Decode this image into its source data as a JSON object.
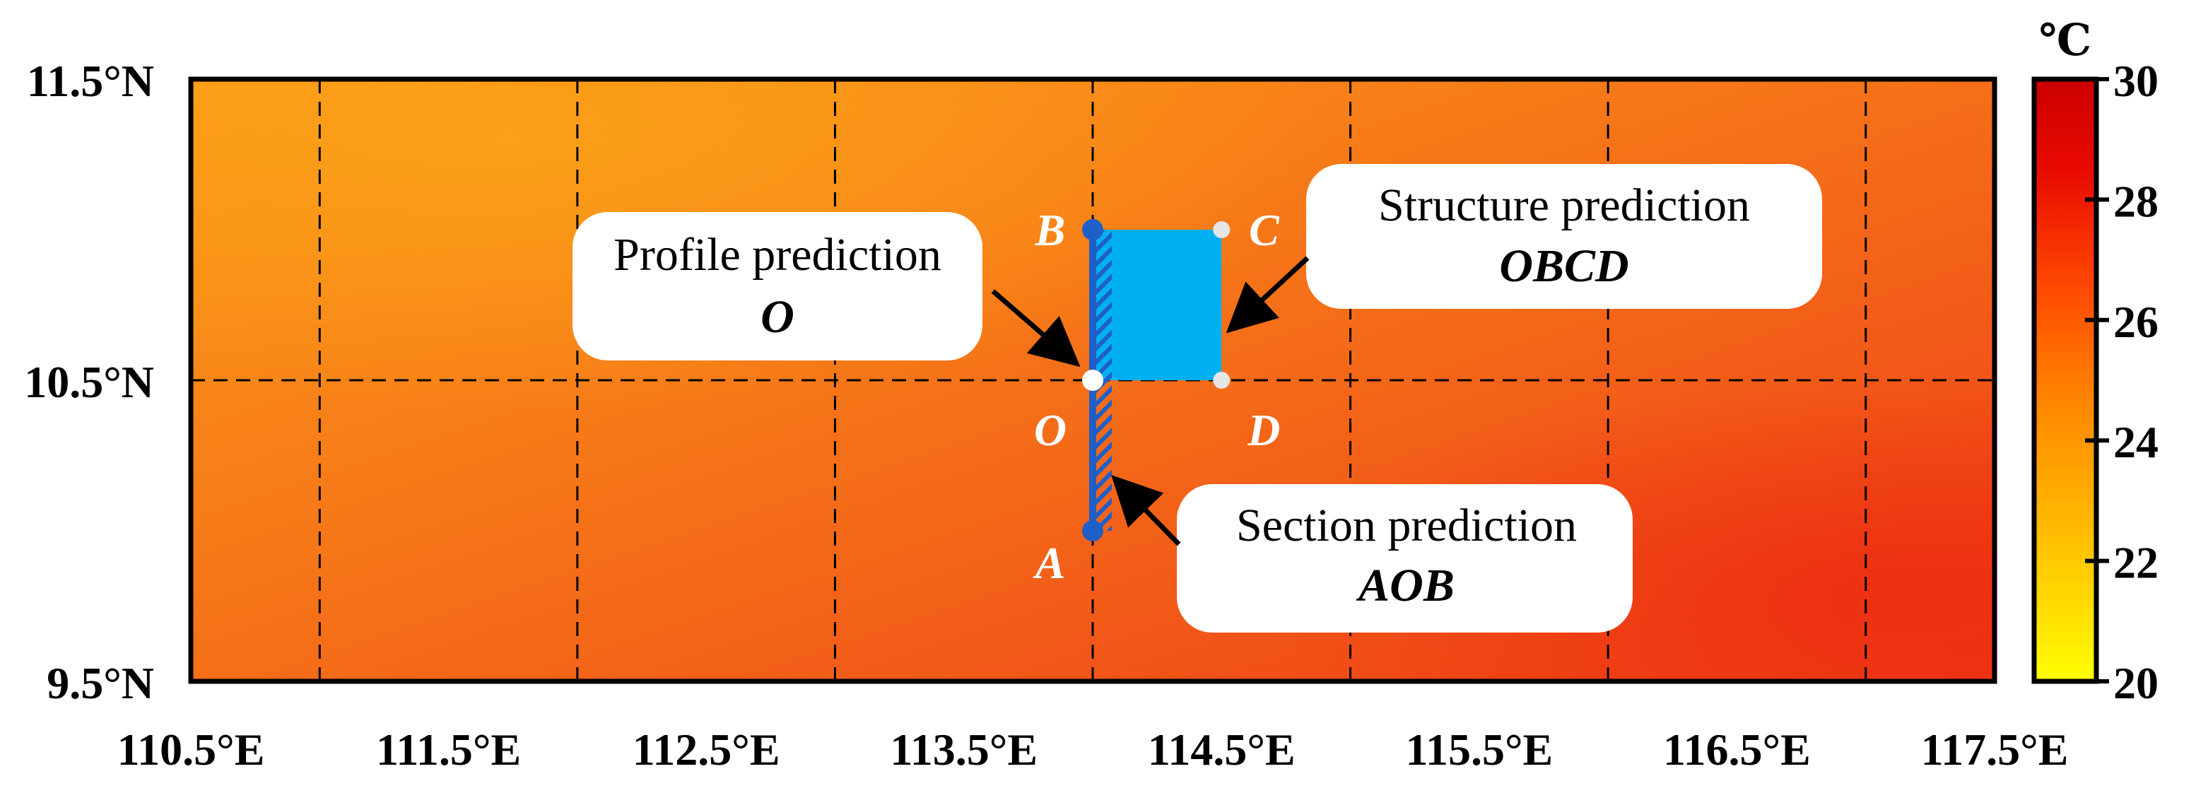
{
  "map": {
    "lat_ticks": [
      {
        "value": 11.5,
        "label": "11.5°N"
      },
      {
        "value": 10.5,
        "label": "10.5°N"
      },
      {
        "value": 9.5,
        "label": "9.5°N"
      }
    ],
    "lon_ticks": [
      {
        "value": 110.5,
        "label": "110.5°E"
      },
      {
        "value": 111.5,
        "label": "111.5°E"
      },
      {
        "value": 112.5,
        "label": "112.5°E"
      },
      {
        "value": 113.5,
        "label": "113.5°E"
      },
      {
        "value": 114.5,
        "label": "114.5°E"
      },
      {
        "value": 115.5,
        "label": "115.5°E"
      },
      {
        "value": 116.5,
        "label": "116.5°E"
      },
      {
        "value": 117.5,
        "label": "117.5°E"
      }
    ],
    "points": [
      {
        "name": "A",
        "label": "A",
        "lon": 114.0,
        "lat": 10.0,
        "color": "#1f5fc8"
      },
      {
        "name": "B",
        "label": "B",
        "lon": 114.0,
        "lat": 11.0,
        "color": "#1f5fc8"
      },
      {
        "name": "O",
        "label": "O",
        "lon": 114.0,
        "lat": 10.5,
        "color": "#ffffff"
      },
      {
        "name": "C",
        "label": "C",
        "lon": 114.5,
        "lat": 11.0,
        "color": "#e6e6e6"
      },
      {
        "name": "D",
        "label": "D",
        "lon": 114.5,
        "lat": 10.5,
        "color": "#e6e6e6"
      }
    ],
    "callouts": {
      "profile": {
        "title": "Profile prediction",
        "code": "O"
      },
      "structure": {
        "title": "Structure prediction",
        "code": "OBCD"
      },
      "section": {
        "title": "Section prediction",
        "code": "AOB"
      }
    },
    "region_color": "#00b0f0",
    "section_color": "#1f5fc8"
  },
  "colorbar": {
    "unit": "℃",
    "min": 20,
    "max": 30,
    "ticks": [
      {
        "value": 30,
        "label": "30"
      },
      {
        "value": 28,
        "label": "28"
      },
      {
        "value": 26,
        "label": "26"
      },
      {
        "value": 24,
        "label": "24"
      },
      {
        "value": 22,
        "label": "22"
      },
      {
        "value": 20,
        "label": "20"
      }
    ],
    "colors": [
      "#ffff00",
      "#ffc000",
      "#ff8000",
      "#ff4000",
      "#e00000",
      "#cc0000"
    ]
  }
}
